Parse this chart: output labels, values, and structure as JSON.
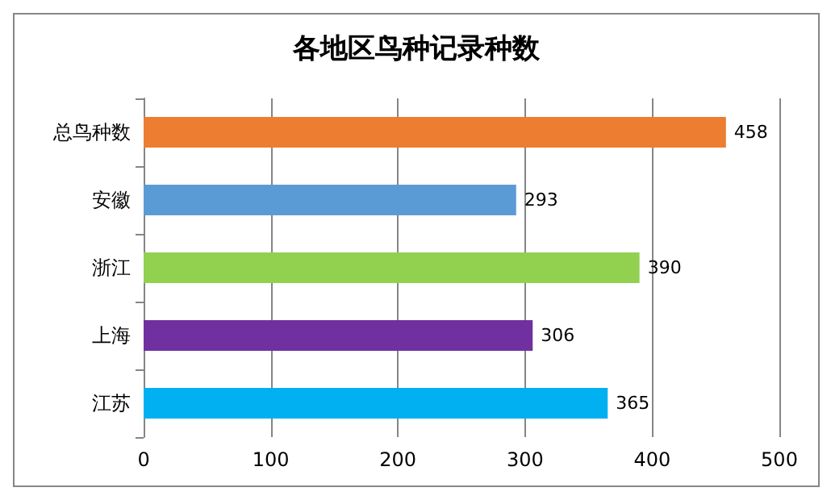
{
  "chart_data": {
    "type": "bar",
    "orientation": "horizontal",
    "title": "各地区鸟种记录种数",
    "categories": [
      "总鸟种数",
      "安徽",
      "浙江",
      "上海",
      "江苏"
    ],
    "values": [
      458,
      293,
      390,
      306,
      365
    ],
    "colors": [
      "#ed7d31",
      "#5b9bd5",
      "#92d050",
      "#7030a0",
      "#00b0f0"
    ],
    "xlim": [
      0,
      500
    ],
    "xticks": [
      0,
      100,
      200,
      300,
      400,
      500
    ],
    "grid": "x",
    "data_labels": true
  }
}
